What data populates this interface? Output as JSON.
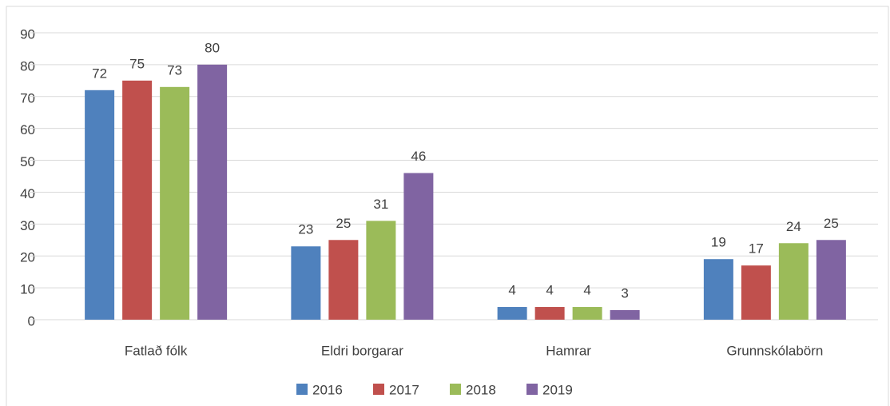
{
  "chart_data": {
    "type": "bar",
    "categories": [
      "Fatlað fólk",
      "Eldri borgarar",
      "Hamrar",
      "Grunnskólabörn"
    ],
    "series": [
      {
        "name": "2016",
        "color": "#4f81bd",
        "values": [
          72,
          23,
          4,
          19
        ]
      },
      {
        "name": "2017",
        "color": "#c0504d",
        "values": [
          75,
          25,
          4,
          17
        ]
      },
      {
        "name": "2018",
        "color": "#9bbb59",
        "values": [
          73,
          31,
          4,
          24
        ]
      },
      {
        "name": "2019",
        "color": "#8064a2",
        "values": [
          80,
          46,
          3,
          25
        ]
      }
    ],
    "ylim": [
      0,
      90
    ],
    "yticks": [
      0,
      10,
      20,
      30,
      40,
      50,
      60,
      70,
      80,
      90
    ],
    "grid": true,
    "legend": "bottom"
  }
}
